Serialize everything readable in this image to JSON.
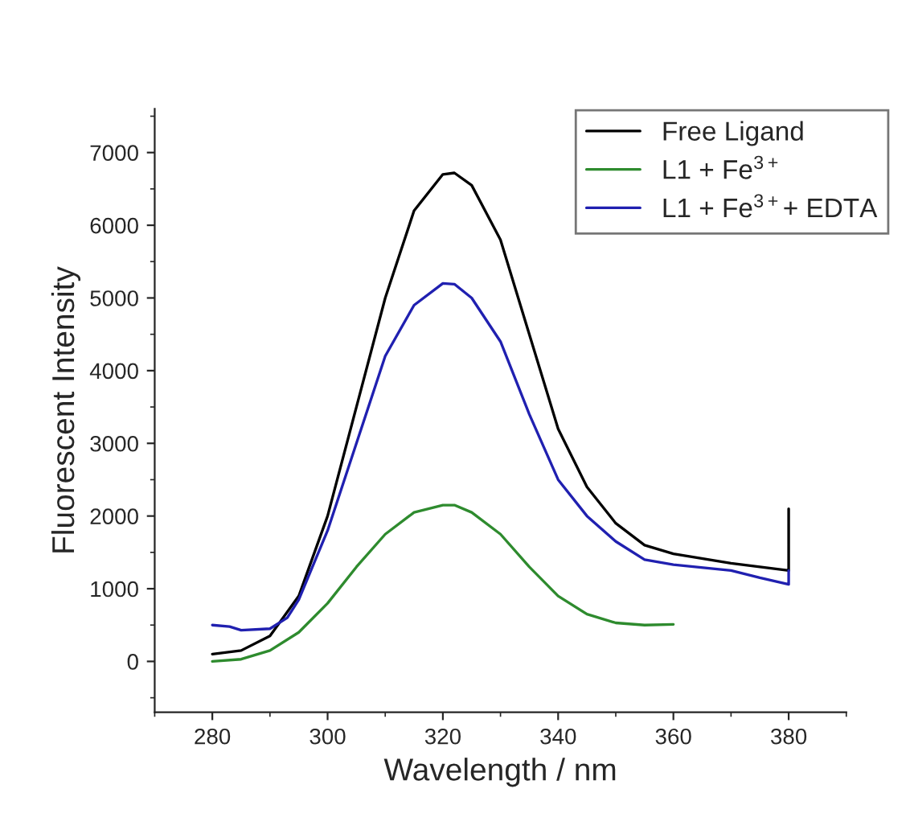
{
  "chart_data": {
    "type": "line",
    "xlabel": "Wavelength / nm",
    "ylabel": "Fluorescent Intensity",
    "xlim": [
      270,
      390
    ],
    "xticks": [
      280,
      300,
      320,
      340,
      360,
      380
    ],
    "ylim": [
      -700,
      7600
    ],
    "yticks": [
      0,
      1000,
      2000,
      3000,
      4000,
      5000,
      6000,
      7000
    ],
    "legend": "top right",
    "grid": false,
    "series": [
      {
        "name": "Free Ligand",
        "color": "#000000",
        "x": [
          280,
          285,
          290,
          295,
          300,
          305,
          310,
          315,
          320,
          322,
          325,
          330,
          335,
          340,
          345,
          350,
          355,
          360,
          370,
          380,
          380
        ],
        "values": [
          100,
          150,
          350,
          900,
          2000,
          3500,
          5000,
          6200,
          6700,
          6720,
          6550,
          5800,
          4500,
          3200,
          2400,
          1900,
          1600,
          1480,
          1350,
          1250,
          2100
        ]
      },
      {
        "name": "L1 + Fe$^{3+}$",
        "color": "#2e8b2e",
        "x": [
          280,
          285,
          290,
          295,
          300,
          305,
          310,
          315,
          320,
          322,
          325,
          330,
          335,
          340,
          345,
          350,
          355,
          360
        ],
        "values": [
          0,
          30,
          150,
          400,
          800,
          1300,
          1750,
          2050,
          2150,
          2150,
          2050,
          1750,
          1300,
          900,
          650,
          530,
          500,
          510
        ]
      },
      {
        "name": "L1 + Fe$^{3+}$+ EDTA",
        "color": "#2020b0",
        "x": [
          280,
          283,
          285,
          290,
          293,
          295,
          300,
          305,
          310,
          315,
          320,
          322,
          325,
          330,
          335,
          340,
          345,
          350,
          355,
          360,
          370,
          375,
          380,
          380
        ],
        "values": [
          500,
          480,
          430,
          450,
          600,
          850,
          1800,
          3000,
          4200,
          4900,
          5200,
          5190,
          5000,
          4400,
          3400,
          2500,
          2000,
          1650,
          1400,
          1330,
          1250,
          1150,
          1060,
          1250
        ]
      }
    ]
  }
}
